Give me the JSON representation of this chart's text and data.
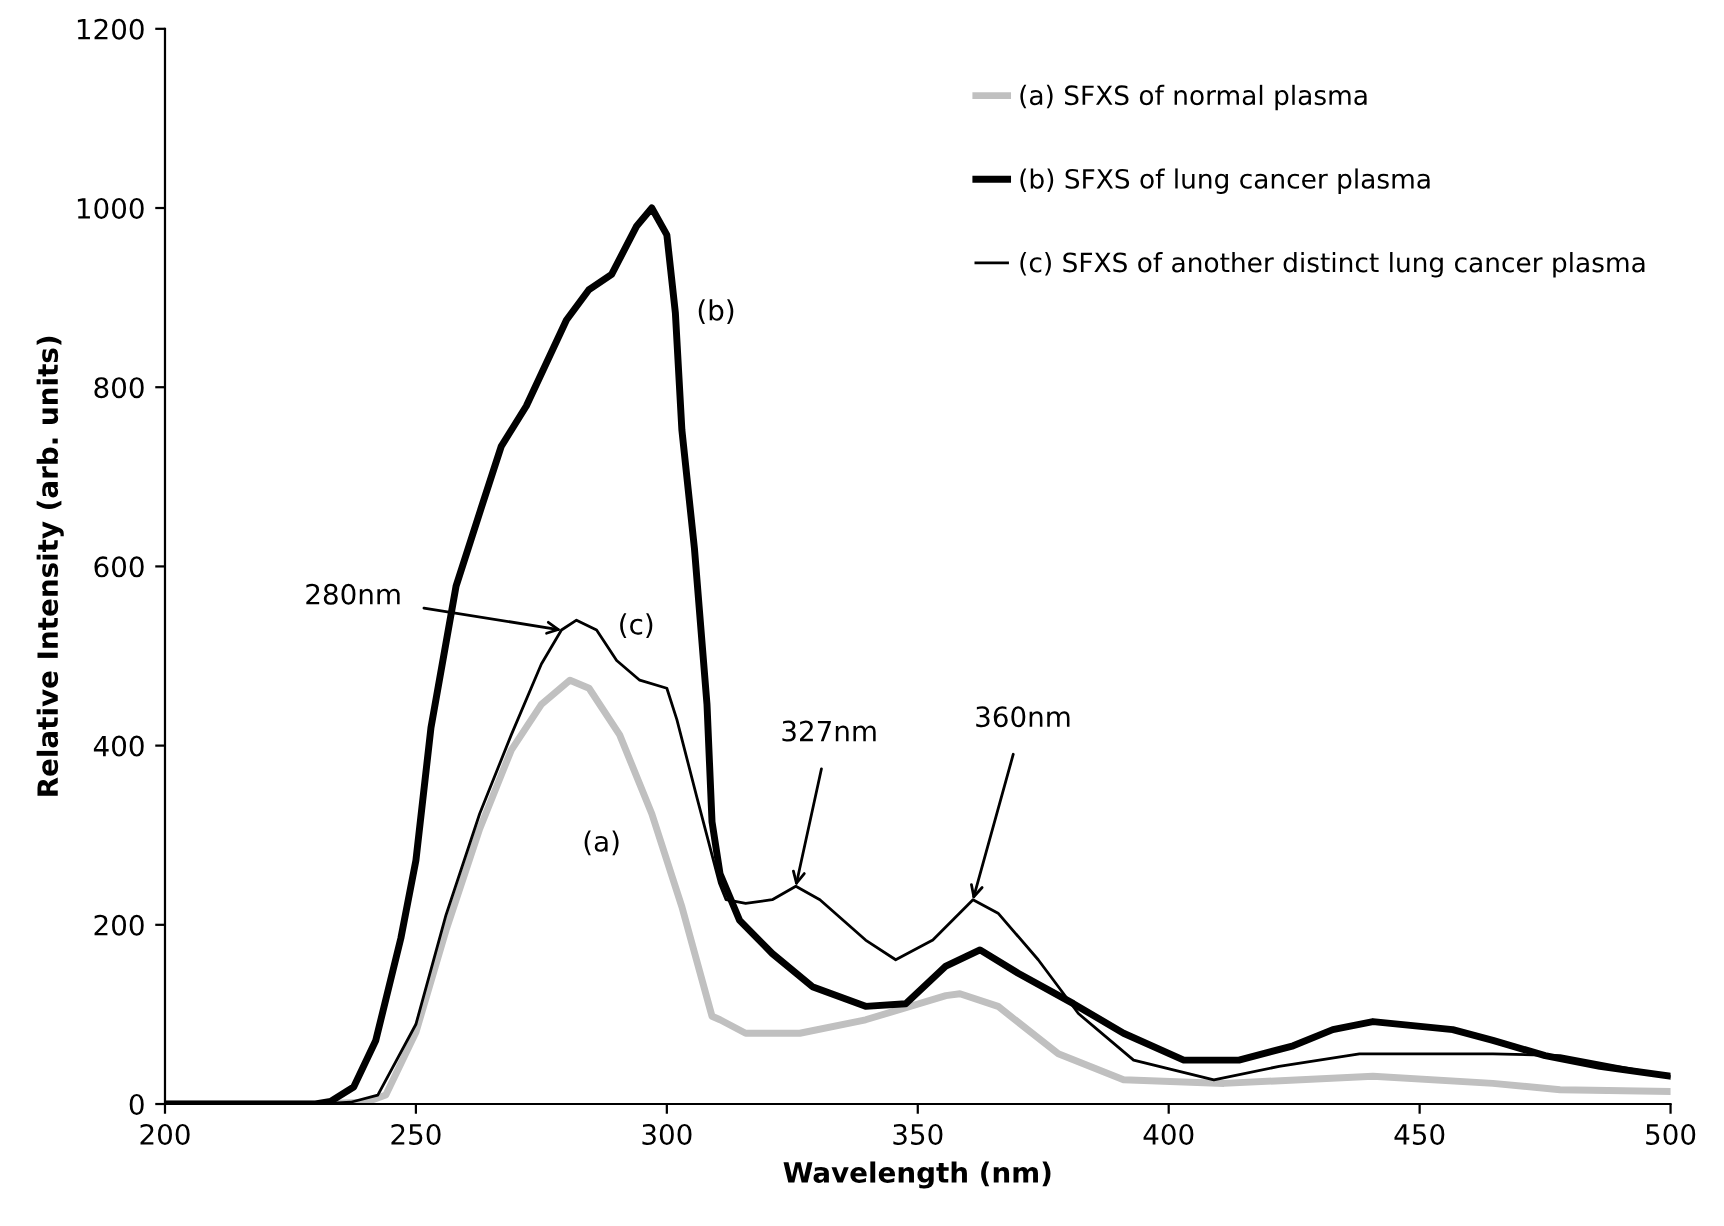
{
  "chart_data": {
    "type": "line",
    "xlabel": "Wavelength (nm)",
    "ylabel": "Relative Intensity (arb. units)",
    "xlim": [
      200,
      500
    ],
    "ylim": [
      0,
      1200
    ],
    "xticks": [
      200,
      250,
      300,
      350,
      400,
      450,
      500
    ],
    "yticks": [
      0,
      200,
      400,
      600,
      800,
      1000,
      1200
    ],
    "grid": false,
    "legend": "top right",
    "marker": "none",
    "line_style": "solid",
    "series": [
      {
        "name": "(a) SFXS of normal plasma",
        "color": "#c0c0c0",
        "x": [
          200,
          230,
          240,
          244,
          250,
          256,
          262.7,
          269,
          275,
          280.7,
          284.5,
          290.6,
          297,
          303,
          309,
          310.6,
          315.7,
          326.5,
          339.6,
          355.6,
          358.4,
          366,
          378,
          391,
          411,
          440.7,
          464.6,
          478,
          500
        ],
        "values": [
          0,
          0,
          2,
          10,
          80,
          194,
          307,
          395,
          446,
          473,
          464,
          412,
          324,
          220,
          98,
          94,
          79,
          79,
          94,
          121,
          123,
          109,
          56,
          27,
          23,
          31,
          23,
          16,
          14
        ]
      },
      {
        "name": "(b) SFXS of lung cancer plasma",
        "color": "#000000",
        "x": [
          200,
          230,
          233,
          237.6,
          242,
          247,
          250,
          253,
          258,
          263,
          267,
          272,
          280,
          284.5,
          289,
          294,
          297,
          300,
          301.7,
          303,
          305.5,
          308,
          309,
          310.6,
          314.5,
          321,
          329,
          339.6,
          347.6,
          355.6,
          362.4,
          370,
          381,
          391,
          403,
          414,
          424.8,
          432.7,
          440.7,
          456.6,
          464.6,
          475,
          485.9,
          500
        ],
        "values": [
          0,
          0,
          3,
          19,
          71,
          185,
          272,
          420,
          578,
          665,
          734,
          779,
          875,
          909,
          926,
          980,
          1000,
          970,
          883,
          752,
          620,
          446,
          315,
          257,
          205,
          168,
          131,
          109,
          112,
          154,
          172,
          146,
          112,
          79,
          49,
          49,
          65,
          83,
          92,
          83,
          71,
          54,
          42,
          31
        ]
      },
      {
        "name": "(c) SFXS of another distinct lung cancer plasma",
        "color": "#000000",
        "x": [
          200,
          230,
          237,
          242.4,
          250,
          256,
          262.7,
          269,
          275,
          279,
          282,
          286,
          290,
          294.6,
          300,
          302,
          306,
          310.5,
          311.8,
          315.7,
          321,
          325.7,
          330.5,
          339.6,
          345.6,
          353,
          361,
          366,
          374,
          382,
          393,
          409,
          422,
          438,
          464.6,
          478,
          500
        ],
        "values": [
          0,
          0,
          2,
          10,
          89,
          211,
          324,
          412,
          491,
          529,
          540,
          529,
          495,
          473,
          464,
          429,
          342,
          246,
          228,
          224,
          228,
          243,
          228,
          183,
          161,
          183,
          228,
          213,
          161,
          101,
          49,
          27,
          42,
          56,
          56,
          54,
          31
        ]
      }
    ],
    "annotations": [
      "(a)",
      "(b)",
      "(c)",
      {
        "text": "280nm",
        "x": 279,
        "y": 529
      },
      {
        "text": "327nm",
        "x": 325.7,
        "y": 243
      },
      {
        "text": "360nm",
        "x": 361,
        "y": 228
      }
    ]
  }
}
